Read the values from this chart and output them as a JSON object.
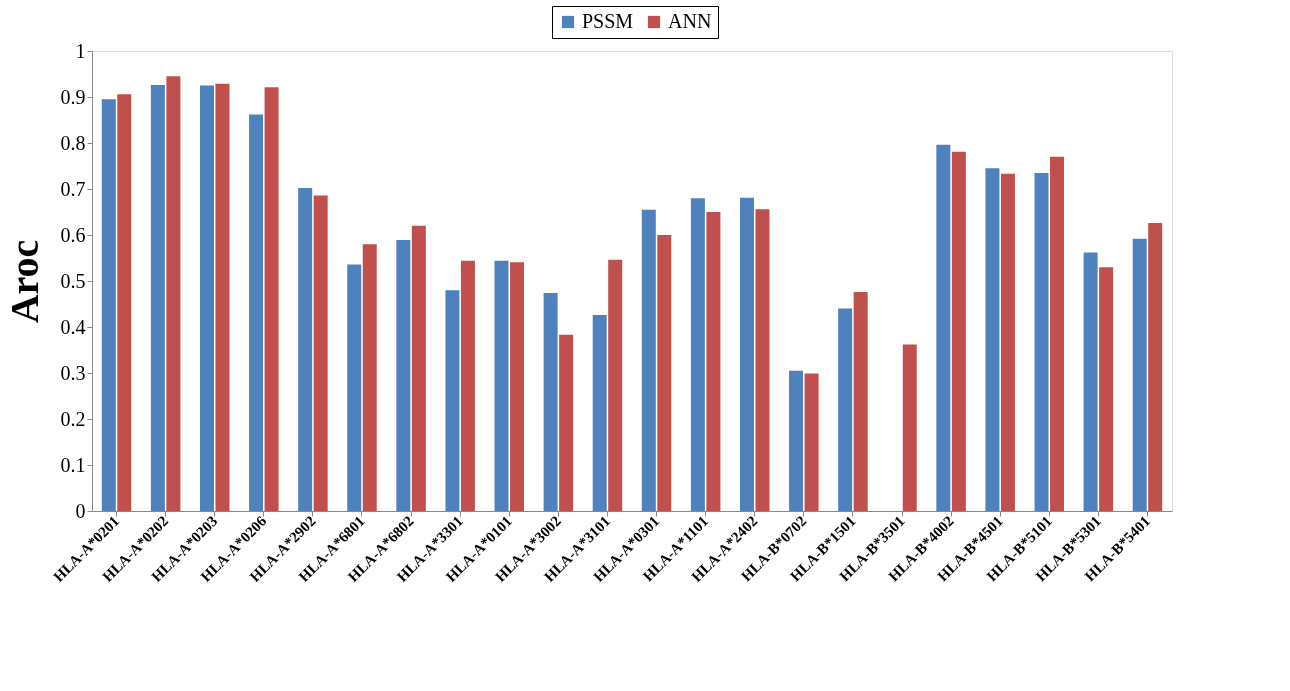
{
  "chart_data": {
    "type": "bar",
    "ylabel": "Aroc",
    "categories": [
      "HLA-A*0201",
      "HLA-A*0202",
      "HLA-A*0203",
      "HLA-A*0206",
      "HLA-A*2902",
      "HLA-A*6801",
      "HLA-A*6802",
      "HLA-A*3301",
      "HLA-A*0101",
      "HLA-A*3002",
      "HLA-A*3101",
      "HLA-A*0301",
      "HLA-A*1101",
      "HLA-A*2402",
      "HLA-B*0702",
      "HLA-B*1501",
      "HLA-B*3501",
      "HLA-B*4002",
      "HLA-B*4501",
      "HLA-B*5101",
      "HLA-B*5301",
      "HLA-B*5401"
    ],
    "series": [
      {
        "name": "PSSM",
        "color": "#4f81bd",
        "values": [
          0.895,
          0.926,
          0.925,
          0.862,
          0.702,
          0.536,
          0.589,
          0.48,
          0.544,
          0.474,
          0.426,
          0.655,
          0.68,
          0.681,
          0.305,
          0.44,
          null,
          0.796,
          0.745,
          0.735,
          0.562,
          0.592
        ]
      },
      {
        "name": "ANN",
        "color": "#c0504d",
        "values": [
          0.906,
          0.945,
          0.929,
          0.921,
          0.686,
          0.58,
          0.62,
          0.544,
          0.541,
          0.383,
          0.546,
          0.6,
          0.65,
          0.656,
          0.299,
          0.476,
          0.362,
          0.781,
          0.733,
          0.77,
          0.53,
          0.626
        ]
      }
    ],
    "ylim": [
      0,
      1
    ],
    "yticks": [
      0,
      0.1,
      0.2,
      0.3,
      0.4,
      0.5,
      0.6,
      0.7,
      0.8,
      0.9,
      1
    ],
    "grid": false,
    "legend": "top"
  }
}
